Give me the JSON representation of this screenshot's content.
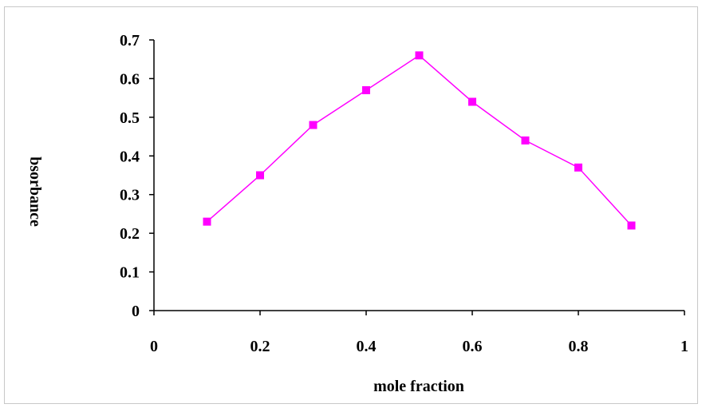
{
  "chart_data": {
    "type": "line",
    "title": "",
    "xlabel": "mole fraction",
    "ylabel": "bsorbance",
    "xlim": [
      0,
      1
    ],
    "ylim": [
      0,
      0.7
    ],
    "x_ticks": [
      "0",
      "0.2",
      "0.4",
      "0.6",
      "0.8",
      "1"
    ],
    "y_ticks": [
      "0",
      "0.1",
      "0.2",
      "0.3",
      "0.4",
      "0.5",
      "0.6",
      "0.7"
    ],
    "grid": false,
    "legend": "none",
    "series": [
      {
        "color": "#ff00ff",
        "marker": "square",
        "x": [
          0.1,
          0.2,
          0.3,
          0.4,
          0.5,
          0.6,
          0.7,
          0.8,
          0.9
        ],
        "y": [
          0.23,
          0.35,
          0.48,
          0.57,
          0.66,
          0.54,
          0.44,
          0.37,
          0.22
        ]
      }
    ]
  }
}
